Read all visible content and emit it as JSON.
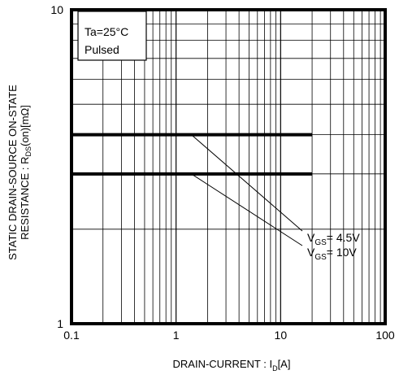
{
  "chart_data": {
    "type": "line",
    "xscale": "log",
    "yscale": "log",
    "xlim": [
      0.1,
      100
    ],
    "ylim": [
      1,
      10
    ],
    "grid": true,
    "x_ticks": [
      "0.1",
      "1",
      "10",
      "100"
    ],
    "y_ticks": [
      "1",
      "10"
    ],
    "xlabel": {
      "pre": "DRAIN-CURRENT : I",
      "sub": "D",
      "post": "[A]"
    },
    "ylabel": {
      "line1": "STATIC DRAIN-SOURCE ON-STATE",
      "line2_pre": "RESISTANCE : R",
      "line2_sub": "DS",
      "line2_post": "(on)[mΩ]"
    },
    "conditions": [
      "Ta=25°C",
      "Pulsed"
    ],
    "series": [
      {
        "name": {
          "pre": "V",
          "sub": "GS",
          "post": "= 4.5V"
        },
        "x": [
          0.1,
          20
        ],
        "y": [
          4.0,
          4.0
        ],
        "color": "#000000"
      },
      {
        "name": {
          "pre": "V",
          "sub": "GS",
          "post": "= 10V"
        },
        "x": [
          0.1,
          20
        ],
        "y": [
          3.0,
          3.0
        ],
        "color": "#000000"
      }
    ]
  }
}
